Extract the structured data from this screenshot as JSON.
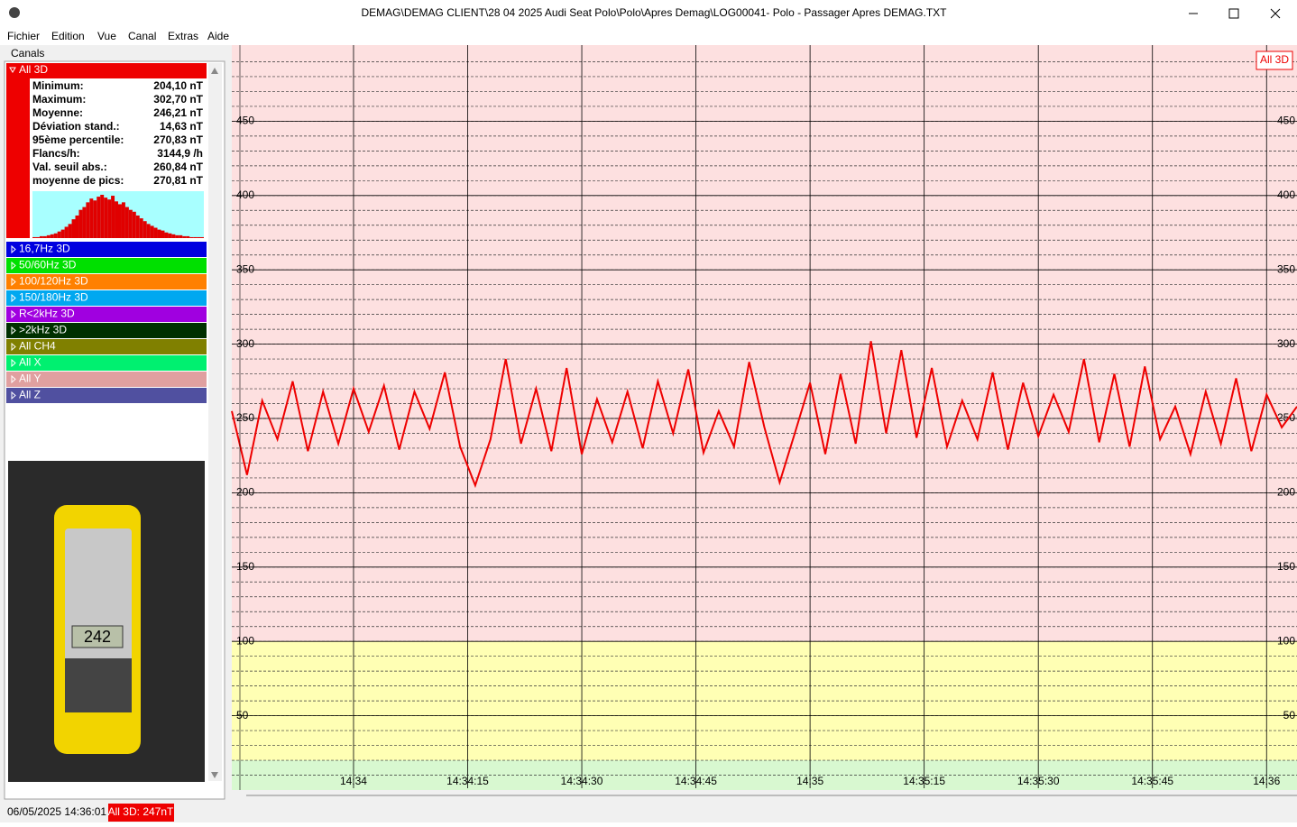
{
  "window": {
    "title": "DEMAG\\DEMAG CLIENT\\28 04 2025 Audi Seat Polo\\Polo\\Apres Demag\\LOG00041- Polo - Passager Apres DEMAG.TXT"
  },
  "menu": [
    "Fichier",
    "Edition",
    "Vue",
    "Canal",
    "Extras",
    "Aide"
  ],
  "sidebar": {
    "heading": "Canals",
    "stats": [
      {
        "label": "Minimum:",
        "value": "204,10 nT"
      },
      {
        "label": "Maximum:",
        "value": "302,70 nT"
      },
      {
        "label": "Moyenne:",
        "value": "246,21 nT"
      },
      {
        "label": "Déviation stand.:",
        "value": "14,63 nT"
      },
      {
        "label": "95ème percentile:",
        "value": "270,83 nT"
      },
      {
        "label": "Flancs/h:",
        "value": "3144,9 /h"
      },
      {
        "label": "Val. seuil abs.:",
        "value": "260,84 nT"
      },
      {
        "label": "moyenne de pics:",
        "value": "270,81 nT"
      }
    ],
    "histogram": [
      1,
      1,
      2,
      2,
      3,
      4,
      5,
      7,
      9,
      12,
      15,
      20,
      24,
      30,
      33,
      38,
      42,
      40,
      44,
      46,
      43,
      41,
      45,
      39,
      36,
      38,
      33,
      30,
      28,
      24,
      21,
      18,
      15,
      13,
      11,
      9,
      8,
      6,
      5,
      4,
      3,
      3,
      2,
      2,
      1,
      1,
      1,
      1
    ],
    "channels": [
      {
        "name": "16,7Hz 3D",
        "color": "#0000e0"
      },
      {
        "name": "50/60Hz 3D",
        "color": "#00e000"
      },
      {
        "name": "100/120Hz 3D",
        "color": "#ff8000"
      },
      {
        "name": "150/180Hz 3D",
        "color": "#00a8f0"
      },
      {
        "name": "R<2kHz 3D",
        "color": "#a000e0"
      },
      {
        "name": ">2kHz 3D",
        "color": "#003000"
      },
      {
        "name": "All CH4",
        "color": "#808000"
      },
      {
        "name": "All X",
        "color": "#00f070"
      },
      {
        "name": "All Y",
        "color": "#e0a0a0"
      },
      {
        "name": "All Z",
        "color": "#5050a0"
      }
    ]
  },
  "photo": {
    "display": "242"
  },
  "status": {
    "datetime": "06/05/2025 14:36:01",
    "reading": "All 3D: 247nT"
  },
  "chart_data": {
    "type": "line",
    "x": [
      "14:33:44",
      "14:33:46",
      "14:33:48",
      "14:33:50",
      "14:33:52",
      "14:33:54",
      "14:33:56",
      "14:33:58",
      "14:34:00",
      "14:34:02",
      "14:34:04",
      "14:34:06",
      "14:34:08",
      "14:34:10",
      "14:34:12",
      "14:34:14",
      "14:34:16",
      "14:34:18",
      "14:34:20",
      "14:34:22",
      "14:34:24",
      "14:34:26",
      "14:34:28",
      "14:34:30",
      "14:34:32",
      "14:34:34",
      "14:34:36",
      "14:34:38",
      "14:34:40",
      "14:34:42",
      "14:34:44",
      "14:34:46",
      "14:34:48",
      "14:34:50",
      "14:34:52",
      "14:34:54",
      "14:34:56",
      "14:34:58",
      "14:35:00",
      "14:35:02",
      "14:35:04",
      "14:35:06",
      "14:35:08",
      "14:35:10",
      "14:35:12",
      "14:35:14",
      "14:35:16",
      "14:35:18",
      "14:35:20",
      "14:35:22",
      "14:35:24",
      "14:35:26",
      "14:35:28",
      "14:35:30",
      "14:35:32",
      "14:35:34",
      "14:35:36",
      "14:35:38",
      "14:35:40",
      "14:35:42",
      "14:35:44",
      "14:35:46",
      "14:35:48",
      "14:35:50",
      "14:35:52",
      "14:35:54",
      "14:35:56",
      "14:35:58",
      "14:36:00",
      "14:36:02",
      "14:36:04"
    ],
    "series": [
      {
        "name": "All 3D",
        "color": "#ee0000",
        "values": [
          255,
          212,
          262,
          236,
          275,
          228,
          268,
          233,
          270,
          241,
          272,
          229,
          268,
          243,
          281,
          231,
          205,
          236,
          290,
          233,
          270,
          228,
          284,
          226,
          263,
          234,
          268,
          230,
          275,
          240,
          283,
          227,
          255,
          231,
          288,
          244,
          207,
          240,
          274,
          226,
          280,
          233,
          302,
          240,
          296,
          237,
          284,
          231,
          262,
          236,
          281,
          229,
          274,
          238,
          266,
          241,
          290,
          234,
          280,
          231,
          285,
          236,
          258,
          226,
          268,
          233,
          277,
          228,
          266,
          244,
          258
        ]
      }
    ],
    "xlim": [
      "14:33:44",
      "14:36:04"
    ],
    "xticks": [
      "14:34",
      "14:34:15",
      "14:34:30",
      "14:34:45",
      "14:35",
      "14:35:15",
      "14:35:30",
      "14:35:45",
      "14:36"
    ],
    "ylim": [
      0,
      500
    ],
    "yticks": [
      50,
      100,
      150,
      200,
      250,
      300,
      350,
      400,
      450
    ],
    "minor_grid_step": 10,
    "bands": [
      {
        "from": 0,
        "to": 20,
        "color": "#d8f8d0"
      },
      {
        "from": 20,
        "to": 100,
        "color": "#ffffb4"
      },
      {
        "from": 100,
        "to": 500,
        "color": "#fde0e0"
      }
    ]
  }
}
